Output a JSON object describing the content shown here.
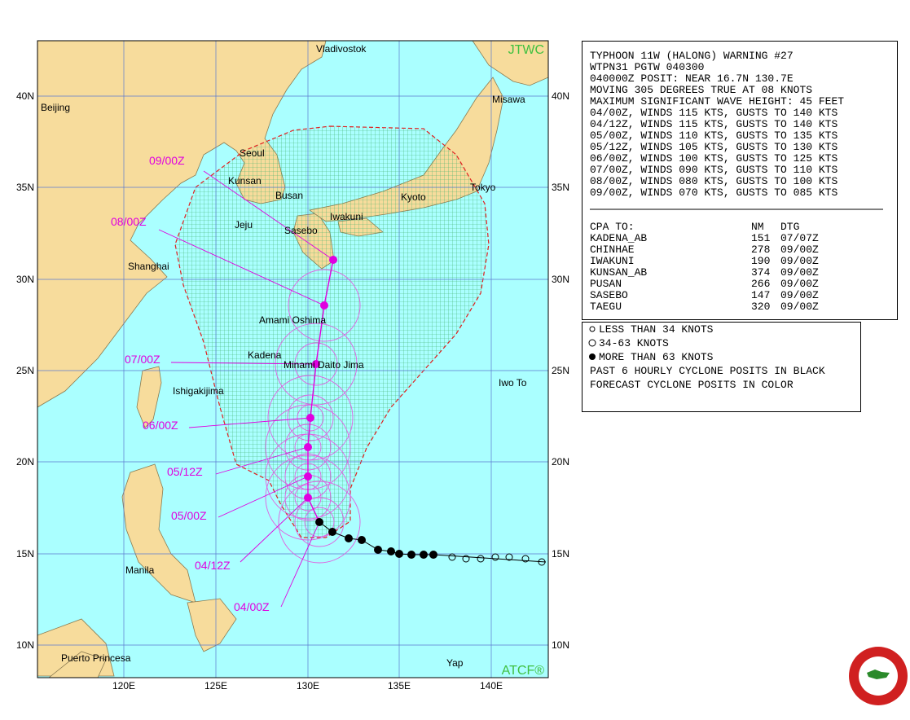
{
  "map": {
    "logo_top": "JTWC",
    "logo_bottom": "ATCF®",
    "lat_labels": [
      "40N",
      "35N",
      "30N",
      "25N",
      "20N",
      "15N",
      "10N"
    ],
    "lon_labels": [
      "120E",
      "125E",
      "130E",
      "135E",
      "140E"
    ],
    "places": [
      "Vladivostok",
      "Beijing",
      "Misawa",
      "Seoul",
      "Kunsan",
      "Busan",
      "Tokyo",
      "Kyoto",
      "Iwakuni",
      "Jeju",
      "Sasebo",
      "Shanghai",
      "Amami Oshima",
      "Kadena",
      "Minami Daito Jima",
      "Iwo To",
      "Ishigakijima",
      "Manila",
      "Puerto Princesa",
      "Yap"
    ],
    "forecast_labels": [
      "09/00Z",
      "08/00Z",
      "07/00Z",
      "06/00Z",
      "05/12Z",
      "05/00Z",
      "04/12Z",
      "04/00Z"
    ]
  },
  "warning": {
    "lines": [
      "TYPHOON 11W (HALONG) WARNING #27",
      "WTPN31 PGTW 040300",
      "040000Z POSIT: NEAR 16.7N 130.7E",
      "MOVING 305 DEGREES TRUE AT 08 KNOTS",
      "MAXIMUM SIGNIFICANT WAVE HEIGHT: 45 FEET",
      "04/00Z, WINDS 115 KTS, GUSTS TO 140 KTS",
      "04/12Z, WINDS 115 KTS, GUSTS TO 140 KTS",
      "05/00Z, WINDS 110 KTS, GUSTS TO 135 KTS",
      "05/12Z, WINDS 105 KTS, GUSTS TO 130 KTS",
      "06/00Z, WINDS 100 KTS, GUSTS TO 125 KTS",
      "07/00Z, WINDS 090 KTS, GUSTS TO 110 KTS",
      "08/00Z, WINDS 080 KTS, GUSTS TO 100 KTS",
      "09/00Z, WINDS 070 KTS, GUSTS TO 085 KTS"
    ]
  },
  "cpa": {
    "header": [
      "CPA TO:",
      "NM",
      "DTG"
    ],
    "rows": [
      [
        "KADENA_AB",
        "151",
        "07/07Z"
      ],
      [
        "CHINHAE",
        "278",
        "09/00Z"
      ],
      [
        "IWAKUNI",
        "190",
        "09/00Z"
      ],
      [
        "KUNSAN_AB",
        "374",
        "09/00Z"
      ],
      [
        "PUSAN",
        "266",
        "09/00Z"
      ],
      [
        "SASEBO",
        "147",
        "09/00Z"
      ],
      [
        "TAEGU",
        "320",
        "09/00Z"
      ]
    ]
  },
  "legend": {
    "lines": [
      "LESS THAN 34 KNOTS",
      "34-63 KNOTS",
      "MORE THAN 63 KNOTS",
      "PAST 6 HOURLY CYCLONE POSITS IN BLACK",
      "FORECAST CYCLONE POSITS IN COLOR"
    ]
  }
}
